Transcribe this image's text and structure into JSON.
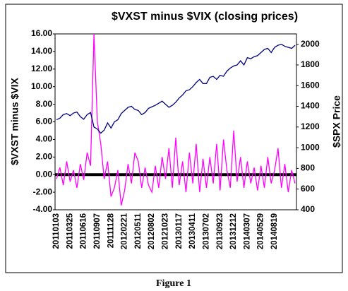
{
  "chart_data": {
    "type": "line",
    "title": "$VXST minus $VIX (closing prices)",
    "y_label": "$VXST minus $VIX",
    "y2_label": "$SPX Price",
    "caption": "Figure 1",
    "categories": [
      "20110103",
      null,
      null,
      null,
      "20110325",
      null,
      null,
      null,
      "20110616",
      null,
      null,
      null,
      "20110907",
      null,
      null,
      null,
      "20111128",
      null,
      null,
      null,
      "20120221",
      null,
      null,
      null,
      "20120511",
      null,
      null,
      null,
      "20120802",
      null,
      null,
      null,
      "20121023",
      null,
      null,
      null,
      "20130117",
      null,
      null,
      null,
      "20130411",
      null,
      null,
      null,
      "20130702",
      null,
      null,
      null,
      "20130923",
      null,
      null,
      null,
      "20131212",
      null,
      null,
      null,
      "20140307",
      null,
      null,
      null,
      "20140529",
      null,
      null,
      null,
      "20140819",
      null,
      null,
      null,
      null,
      null,
      null
    ],
    "series": [
      {
        "color": "#ff00ff",
        "values": [
          -0.5,
          0.8,
          -1.2,
          1.5,
          -0.8,
          0.5,
          -1.5,
          1.2,
          -0.6,
          2.5,
          1.0,
          16.0,
          6.0,
          3.5,
          -0.5,
          1.5,
          -2.5,
          -1.5,
          0.5,
          -3.5,
          -1.8,
          1.2,
          -1.0,
          2.5,
          1.5,
          -1.5,
          0.8,
          -1.2,
          -2.0,
          1.0,
          -1.5,
          2.0,
          -0.5,
          3.0,
          -1.5,
          4.2,
          -1.2,
          1.5,
          -2.0,
          2.5,
          -1.0,
          3.5,
          -2.0,
          1.8,
          -1.5,
          2.0,
          -1.0,
          3.5,
          -1.8,
          4.0,
          0.5,
          -1.5,
          5.0,
          -0.8,
          2.0,
          -1.5,
          1.5,
          -1.0,
          0.8,
          -1.8,
          1.0,
          -1.5,
          2.0,
          -1.0,
          0.5,
          3.0,
          -1.5,
          1.2,
          -2.0,
          0.5,
          -1.0
        ]
      },
      {
        "color": "#000080",
        "axis": "y2",
        "values": [
          1270,
          1285,
          1320,
          1330,
          1310,
          1335,
          1345,
          1300,
          1275,
          1320,
          1340,
          1200,
          1180,
          1140,
          1170,
          1240,
          1190,
          1250,
          1270,
          1330,
          1360,
          1390,
          1400,
          1370,
          1360,
          1320,
          1340,
          1380,
          1395,
          1410,
          1430,
          1450,
          1420,
          1390,
          1410,
          1440,
          1480,
          1510,
          1550,
          1560,
          1590,
          1630,
          1660,
          1620,
          1620,
          1680,
          1690,
          1660,
          1700,
          1690,
          1740,
          1770,
          1790,
          1800,
          1840,
          1800,
          1870,
          1860,
          1880,
          1890,
          1920,
          1950,
          1960,
          1920,
          1970,
          1990,
          2000,
          1980,
          1970,
          1960,
          1990
        ]
      }
    ],
    "ylim": [
      -4,
      16
    ],
    "yticks": [
      {
        "value": -4,
        "label": "-4.00"
      },
      {
        "value": -2,
        "label": "-2.00"
      },
      {
        "value": 0,
        "label": "0.00"
      },
      {
        "value": 2,
        "label": "2.00"
      },
      {
        "value": 4,
        "label": "4.00"
      },
      {
        "value": 6,
        "label": "6.00"
      },
      {
        "value": 8,
        "label": "8.00"
      },
      {
        "value": 10,
        "label": "10.00"
      },
      {
        "value": 12,
        "label": "12.00"
      },
      {
        "value": 14,
        "label": "14.00"
      },
      {
        "value": 16,
        "label": "16.00"
      }
    ],
    "y2lim": [
      400,
      2100
    ],
    "y2ticks": [
      400,
      600,
      800,
      1000,
      1200,
      1400,
      1600,
      1800,
      2000
    ],
    "zero_line": true
  }
}
